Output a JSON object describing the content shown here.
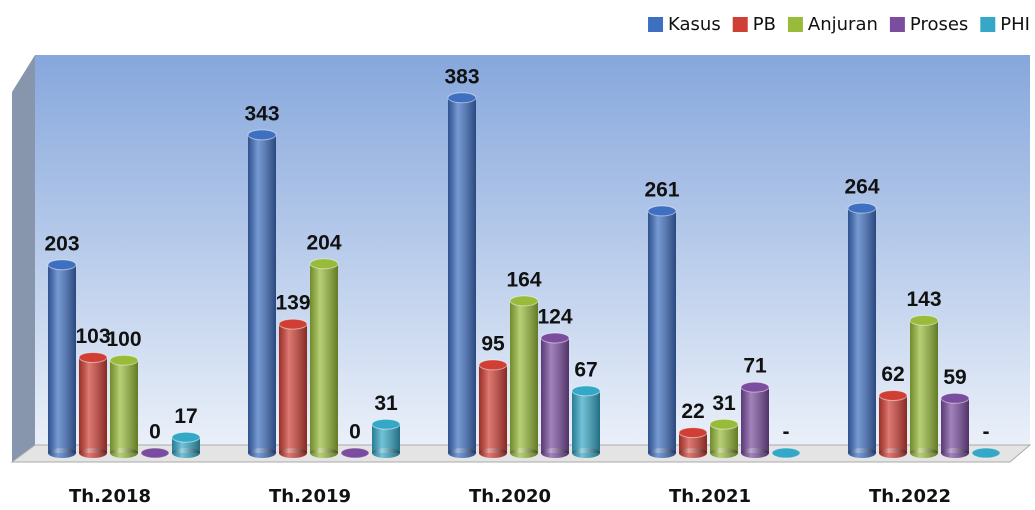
{
  "chart_data": {
    "type": "bar3d",
    "categories": [
      "Th.2018",
      "Th.2019",
      "Th.2020",
      "Th.2021",
      "Th.2022"
    ],
    "series": [
      {
        "name": "Kasus",
        "color": "#3f6fc1",
        "values": [
          203,
          343,
          383,
          261,
          264
        ]
      },
      {
        "name": "PB",
        "color": "#cf3f36",
        "values": [
          103,
          139,
          95,
          22,
          62
        ]
      },
      {
        "name": "Anjuran",
        "color": "#98bb3a",
        "values": [
          100,
          204,
          164,
          31,
          143
        ]
      },
      {
        "name": "Proses",
        "color": "#7b4d9f",
        "values": [
          0,
          0,
          124,
          71,
          59
        ]
      },
      {
        "name": "PHI",
        "color": "#36a8c7",
        "values": [
          17,
          31,
          67,
          0,
          0
        ],
        "value_labels": [
          "17",
          "31",
          "67",
          "-",
          "-"
        ]
      }
    ],
    "ylim": [
      0,
      400
    ],
    "legend": "top-right"
  }
}
